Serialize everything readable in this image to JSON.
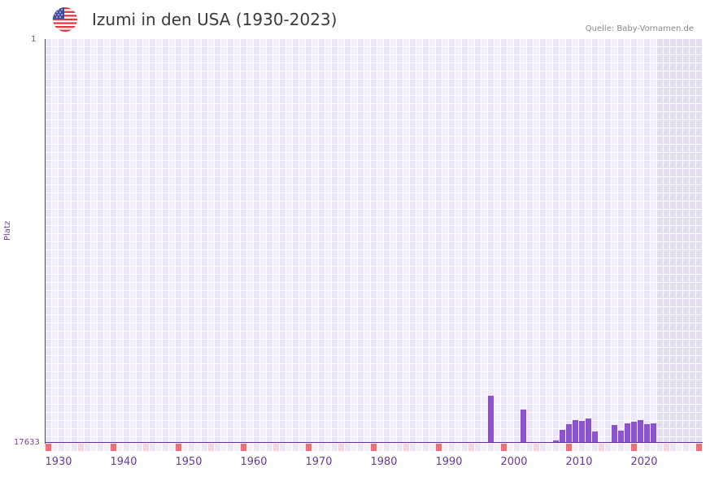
{
  "header": {
    "title": "Izumi in den USA (1930-2023)",
    "flag_icon": "us-flag-icon",
    "source": "Quelle: Baby-Vornamen.de"
  },
  "colors": {
    "bar": "#8a55c6",
    "axis": "#6a2f9c",
    "grid_light": "#f3f0fc",
    "grid_dark": "#ebe6f8",
    "future_shade": "#e3dfee",
    "decade_marker": "#e5737a",
    "half_decade_marker": "#f2d5de"
  },
  "chart_data": {
    "type": "bar",
    "title": "Izumi in den USA (1930-2023)",
    "xlabel": "",
    "ylabel": "Platz",
    "y_inverted": true,
    "ylim": [
      1,
      17633
    ],
    "yticks": [
      "1",
      "17633"
    ],
    "xlim": [
      1930,
      2030
    ],
    "xticks": [
      "1930",
      "1940",
      "1950",
      "1960",
      "1970",
      "1980",
      "1990",
      "2000",
      "2010",
      "2020"
    ],
    "grid": true,
    "future_shaded_from": 2024,
    "categories": [
      1998,
      2003,
      2008,
      2009,
      2010,
      2011,
      2012,
      2013,
      2014,
      2017,
      2018,
      2019,
      2020,
      2021,
      2022,
      2023
    ],
    "values": [
      15570,
      16170,
      17530,
      17060,
      16810,
      16640,
      16670,
      16560,
      17130,
      16850,
      17100,
      16780,
      16710,
      16640,
      16810,
      16780
    ]
  }
}
